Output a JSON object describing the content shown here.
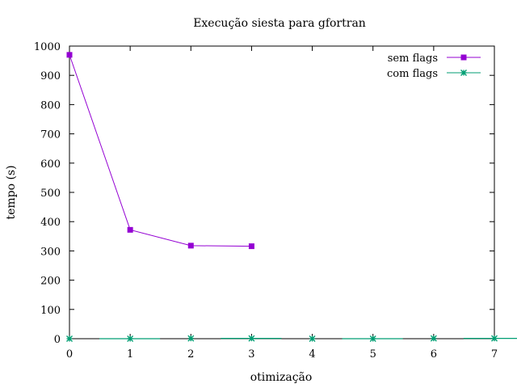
{
  "chart_data": {
    "type": "line",
    "title": "Execução siesta para gfortran",
    "xlabel": "otimização",
    "ylabel": "tempo (s)",
    "xlim": [
      0,
      7
    ],
    "ylim": [
      0,
      1000
    ],
    "xticks": [
      0,
      1,
      2,
      3,
      4,
      5,
      6,
      7
    ],
    "yticks": [
      0,
      100,
      200,
      300,
      400,
      500,
      600,
      700,
      800,
      900,
      1000
    ],
    "grid": false,
    "legend_position": "top-right",
    "series": [
      {
        "name": "sem flags",
        "color": "#9400d3",
        "marker": "square",
        "x": [
          0,
          1,
          2,
          3
        ],
        "y": [
          970,
          372,
          318,
          316
        ]
      },
      {
        "name": "com flags",
        "color": "#009e73",
        "marker": "star",
        "x": [
          0,
          1,
          2,
          3,
          4,
          5,
          6,
          7
        ],
        "y": [
          0,
          0,
          1,
          1,
          0,
          0,
          1,
          1
        ]
      }
    ]
  }
}
